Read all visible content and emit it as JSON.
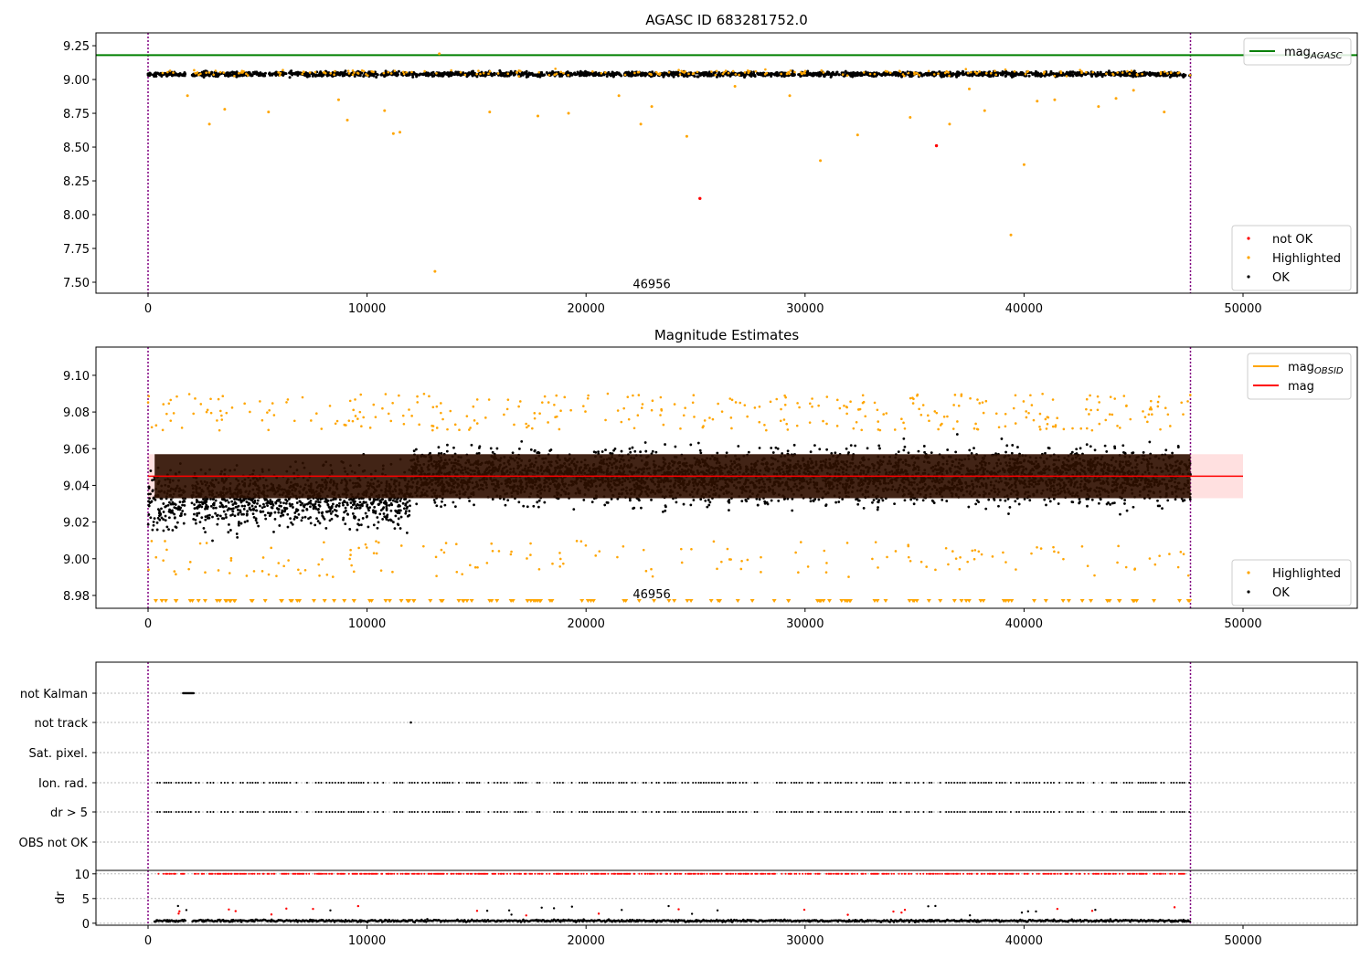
{
  "chart_data": [
    {
      "type": "scatter",
      "title": "AGASC ID 683281752.0",
      "xlim": [
        -2379,
        55217
      ],
      "ylim": [
        7.419,
        9.345
      ],
      "xticks": [
        0,
        10000,
        20000,
        30000,
        40000,
        50000
      ],
      "yticks": [
        7.5,
        7.75,
        8.0,
        8.25,
        8.5,
        8.75,
        9.0,
        9.25
      ],
      "ytick_labels": [
        "7.50",
        "7.75",
        "8.00",
        "8.25",
        "8.50",
        "8.75",
        "9.00",
        "9.25"
      ],
      "annotation": {
        "text": "46956",
        "x": 23000,
        "y": 7.47
      },
      "vlines": [
        0,
        47600
      ],
      "hline": {
        "name": "mag_AGASC",
        "value": 9.18,
        "color": "#008000"
      },
      "ok_series": {
        "name": "OK",
        "color": "#000000",
        "center": 9.04,
        "spread": 0.012,
        "x_range": [
          0,
          47600
        ],
        "gap": [
          1700,
          2000
        ]
      },
      "highlighted": [
        [
          13100,
          7.58
        ],
        [
          39400,
          7.85
        ],
        [
          40000,
          8.37
        ],
        [
          30700,
          8.4
        ],
        [
          32400,
          8.59
        ],
        [
          24600,
          8.58
        ],
        [
          11200,
          8.6
        ],
        [
          11500,
          8.61
        ],
        [
          22500,
          8.67
        ],
        [
          36600,
          8.67
        ],
        [
          2800,
          8.67
        ],
        [
          17800,
          8.73
        ],
        [
          34800,
          8.72
        ],
        [
          15600,
          8.76
        ],
        [
          5500,
          8.76
        ],
        [
          19200,
          8.75
        ],
        [
          9100,
          8.7
        ],
        [
          3500,
          8.78
        ],
        [
          10800,
          8.77
        ],
        [
          46400,
          8.76
        ],
        [
          38200,
          8.77
        ],
        [
          40600,
          8.84
        ],
        [
          44200,
          8.86
        ],
        [
          43400,
          8.8
        ],
        [
          8700,
          8.85
        ],
        [
          29300,
          8.88
        ],
        [
          1800,
          8.88
        ],
        [
          13300,
          9.19
        ],
        [
          37500,
          8.93
        ],
        [
          26800,
          8.95
        ],
        [
          21500,
          8.88
        ],
        [
          23000,
          8.8
        ],
        [
          41400,
          8.85
        ],
        [
          45000,
          8.92
        ]
      ],
      "not_ok": [
        [
          25200,
          8.12
        ],
        [
          36000,
          8.51
        ]
      ],
      "legends": [
        {
          "location": "upper-right",
          "entries": [
            "mag",
            "AGASC"
          ]
        },
        {
          "location": "lower-right",
          "entries": [
            "not OK",
            "Highlighted",
            "OK"
          ]
        }
      ],
      "colors": {
        "not_ok": "#ff0000",
        "highlighted": "#ffa500",
        "ok": "#000000",
        "vline": "#800080"
      }
    },
    {
      "type": "scatter",
      "title": "Magnitude Estimates",
      "xlim": [
        -2379,
        55217
      ],
      "ylim": [
        8.973,
        9.1154
      ],
      "xticks": [
        0,
        10000,
        20000,
        30000,
        40000,
        50000
      ],
      "yticks": [
        8.98,
        9.0,
        9.02,
        9.04,
        9.06,
        9.08,
        9.1
      ],
      "ytick_labels": [
        "8.98",
        "9.00",
        "9.02",
        "9.04",
        "9.06",
        "9.08",
        "9.10"
      ],
      "annotation": {
        "text": "46956",
        "x": 23000,
        "y": 8.98
      },
      "mag": 9.045,
      "mag_band": [
        9.033,
        9.057
      ],
      "mag_band_x": [
        0,
        50000
      ],
      "legends": [
        {
          "location": "upper-right",
          "entries": [
            "mag",
            "OBSID",
            "mag"
          ]
        },
        {
          "location": "lower-right",
          "entries": [
            "Highlighted",
            "OK"
          ]
        }
      ],
      "colors": {
        "mag": "#ff0000",
        "mag_obsid": "#ffa500",
        "band": "#ffcccc",
        "core": "#2e1000"
      }
    },
    {
      "type": "scatter",
      "categories": [
        "not Kalman",
        "not track",
        "Sat. pixel.",
        "Ion. rad.",
        "dr > 5",
        "OBS not OK"
      ],
      "flag_xranges": {
        "not Kalman": [
          [
            1600,
            2100
          ]
        ],
        "not track": [
          [
            12000,
            12000
          ]
        ]
      },
      "dr_ylabel": "dr",
      "dr_yticks": [
        0,
        5,
        10
      ],
      "dr_ytick_labels": [
        "0",
        "5",
        "10"
      ],
      "dr_ylim": [
        -0.4,
        10.7
      ],
      "xticks": [
        0,
        10000,
        20000,
        30000,
        40000,
        50000
      ]
    }
  ]
}
